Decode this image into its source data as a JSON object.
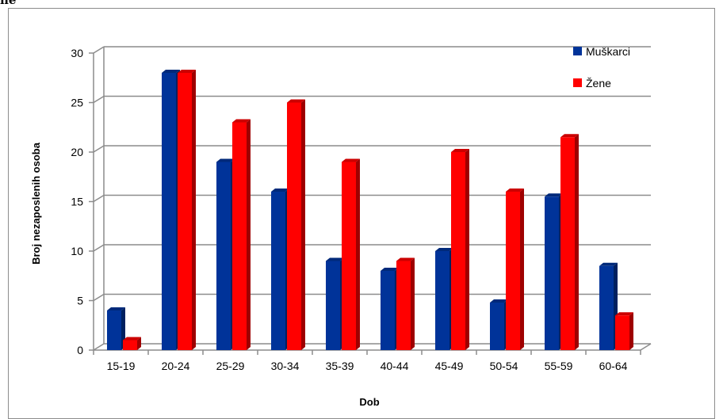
{
  "top_text": "ne",
  "chart_data": {
    "type": "bar",
    "categories": [
      "15-19",
      "20-24",
      "25-29",
      "30-34",
      "35-39",
      "40-44",
      "45-49",
      "50-54",
      "55-59",
      "60-64"
    ],
    "series": [
      {
        "name": "Muškarci",
        "values": [
          4,
          28,
          19,
          16,
          9,
          8,
          10,
          4.8,
          15.5,
          8.5
        ],
        "color": "#003399"
      },
      {
        "name": "Žene",
        "values": [
          1,
          28,
          23,
          25,
          19,
          9,
          20,
          16,
          21.5,
          3.5
        ],
        "color": "#ff0000"
      }
    ],
    "title": "",
    "xlabel": "Dob",
    "ylabel": "Broj nezaposlenih osoba",
    "ylim": [
      0,
      30
    ],
    "yticks": [
      0,
      5,
      10,
      15,
      20,
      25,
      30
    ],
    "grid": true,
    "legend_position": "top-right",
    "style": "3d-clustered-bar"
  }
}
